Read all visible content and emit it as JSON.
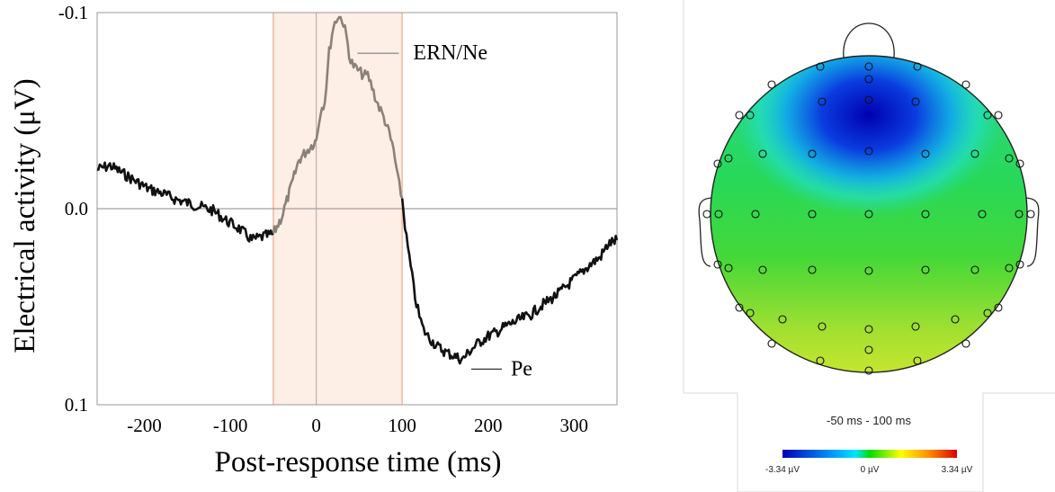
{
  "chart_data": [
    {
      "type": "line",
      "xlabel": "Post-response time (ms)",
      "ylabel": "Electrical activity (μV)",
      "xlim": [
        -255,
        350
      ],
      "ylim": [
        0.1,
        -0.1
      ],
      "y_axis_inverted": true,
      "x_ticks": [
        -200,
        -100,
        0,
        100,
        200,
        300
      ],
      "y_ticks": [
        {
          "value": -0.1,
          "label": "-0.1"
        },
        {
          "value": 0.0,
          "label": "0.0"
        },
        {
          "value": 0.1,
          "label": "0.1"
        }
      ],
      "shaded_window": {
        "start": -50,
        "end": 100,
        "fill": "#fdeee6",
        "edge": "#f0b9a0"
      },
      "reference_lines": [
        {
          "axis": "y",
          "value": 0.0
        },
        {
          "axis": "x",
          "value": 0
        }
      ],
      "series": [
        {
          "x": [
            -255,
            -240,
            -225,
            -210,
            -195,
            -180,
            -165,
            -150,
            -135,
            -120,
            -105,
            -90,
            -75,
            -60,
            -50,
            -40,
            -30,
            -20,
            -10,
            0,
            5,
            10,
            15,
            20,
            25,
            30,
            35,
            40,
            45,
            50,
            55,
            60,
            65,
            70,
            75,
            80,
            85,
            90,
            95,
            100,
            105,
            110,
            115,
            120,
            125,
            130,
            140,
            150,
            160,
            170,
            180,
            190,
            200,
            210,
            220,
            230,
            240,
            250,
            260,
            270,
            280,
            290,
            300,
            310,
            320,
            330,
            340,
            350
          ],
          "y": [
            -0.02,
            -0.022,
            -0.018,
            -0.014,
            -0.01,
            -0.008,
            -0.005,
            -0.003,
            -0.001,
            0.001,
            0.006,
            0.01,
            0.016,
            0.014,
            0.013,
            0.004,
            -0.01,
            -0.025,
            -0.03,
            -0.035,
            -0.05,
            -0.055,
            -0.08,
            -0.093,
            -0.098,
            -0.097,
            -0.088,
            -0.075,
            -0.072,
            -0.07,
            -0.068,
            -0.068,
            -0.062,
            -0.055,
            -0.05,
            -0.045,
            -0.038,
            -0.03,
            -0.015,
            -0.005,
            0.015,
            0.03,
            0.045,
            0.055,
            0.062,
            0.065,
            0.07,
            0.073,
            0.075,
            0.077,
            0.072,
            0.068,
            0.065,
            0.063,
            0.06,
            0.058,
            0.056,
            0.054,
            0.05,
            0.047,
            0.044,
            0.04,
            0.036,
            0.032,
            0.028,
            0.025,
            0.018,
            0.016
          ],
          "color": "#111111",
          "window_color": "#8a8179"
        }
      ],
      "annotations": [
        {
          "text": "ERN/Ne",
          "x": 27,
          "y": -0.082
        },
        {
          "text": "Pe",
          "x": 172,
          "y": 0.08
        }
      ]
    },
    {
      "type": "heatmap",
      "title": "-50 ms - 100 ms",
      "colorbar": {
        "min_label": "-3.34 µV",
        "mid_label": "0 µV",
        "max_label": "3.34 µV",
        "colors": [
          "#0000b4",
          "#00a0ff",
          "#00e6ff",
          "#00dc00",
          "#ffff00",
          "#ff8c00",
          "#dc0000"
        ]
      }
    }
  ]
}
